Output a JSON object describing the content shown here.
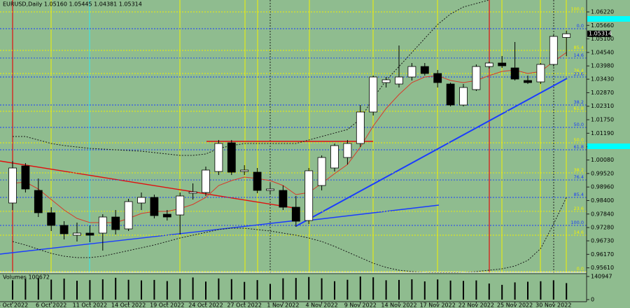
{
  "chart_data": {
    "type": "candlestick",
    "title": "EURUSD,Daily  1.05160 1.05445 1.04381 1.05314",
    "categories": [
      "3 Oct 2022",
      null,
      null,
      "6 Oct 2022",
      null,
      null,
      "11 Oct 2022",
      null,
      null,
      "14 Oct 2022",
      null,
      null,
      "19 Oct 2022",
      null,
      null,
      "24 Oct 2022",
      null,
      null,
      "27 Oct 2022",
      null,
      null,
      "1 Nov 2022",
      null,
      null,
      "4 Nov 2022",
      null,
      null,
      "9 Nov 2022",
      null,
      null,
      "14 Nov 2022",
      null,
      null,
      "17 Nov 2022",
      null,
      null,
      "22 Nov 2022",
      null,
      null,
      "25 Nov 2022",
      null,
      null,
      "30 Nov 2022",
      null
    ],
    "open": [
      0.98298,
      0.99836,
      0.9882,
      0.97892,
      0.97369,
      0.96963,
      0.9705,
      0.9705,
      0.97717,
      0.97224,
      0.98298,
      0.9853,
      0.97833,
      0.97804,
      0.98704,
      0.98733,
      0.99604,
      1.00793,
      0.99604,
      0.99575,
      0.9882,
      0.9882,
      0.98124,
      0.97572,
      0.99023,
      0.99749,
      1.00184,
      1.00764,
      1.0207,
      1.03289,
      1.03231,
      1.03521,
      1.03956,
      1.03666,
      1.03231,
      1.0236,
      1.02999,
      1.03956,
      1.04101,
      1.03898,
      1.03376,
      1.03318,
      1.04043,
      1.0516
    ],
    "high": [
      1.00039,
      0.99952,
      0.99313,
      0.98124,
      0.97543,
      0.97485,
      0.97369,
      0.97833,
      0.98008,
      0.98472,
      0.98733,
      0.98646,
      0.98008,
      0.98733,
      0.9911,
      0.99807,
      1.00909,
      1.00909,
      0.99865,
      0.99749,
      0.9911,
      0.99023,
      0.98588,
      0.99749,
      1.00271,
      1.00764,
      1.00909,
      1.0236,
      1.03579,
      1.03521,
      1.04827,
      1.04101,
      1.04101,
      1.03811,
      1.03289,
      1.03231,
      1.04043,
      1.04159,
      1.04392,
      1.04972,
      1.03579,
      1.04101,
      1.05262,
      1.05445
    ],
    "low": [
      0.98008,
      0.98733,
      0.97717,
      0.97137,
      0.96789,
      0.96702,
      0.96673,
      0.96325,
      0.96992,
      0.97137,
      0.98008,
      0.97659,
      0.97572,
      0.96992,
      0.98443,
      0.98588,
      0.99458,
      0.99458,
      0.99458,
      0.98704,
      0.98646,
      0.98008,
      0.97311,
      0.97427,
      0.9882,
      0.99604,
      0.99894,
      1.00619,
      1.01925,
      1.03086,
      1.03086,
      1.03376,
      1.03579,
      1.03086,
      1.02302,
      1.02302,
      1.02941,
      1.03869,
      1.03898,
      1.03376,
      1.03231,
      1.03231,
      1.03956,
      1.04381
    ],
    "close": [
      0.99749,
      0.98878,
      0.97892,
      0.97369,
      0.97021,
      0.9705,
      0.96963,
      0.97717,
      0.97195,
      0.98356,
      0.9853,
      0.97775,
      0.97717,
      0.98588,
      0.98762,
      0.99662,
      1.00764,
      0.99575,
      0.99662,
      0.9882,
      0.98878,
      0.98124,
      0.97543,
      0.99633,
      1.00184,
      1.00677,
      1.00764,
      1.0207,
      1.03521,
      1.03405,
      1.03521,
      1.03956,
      1.03666,
      1.03289,
      1.0236,
      1.03086,
      1.03956,
      1.04101,
      1.03985,
      1.03434,
      1.03289,
      1.04043,
      1.05204,
      1.05314
    ],
    "bull_color": "#ffffff",
    "bear_color": "#000000",
    "ylim": [
      0.95396,
      1.06713
    ],
    "yticks": [
      {
        "value": 1.0622,
        "label": "1.06220"
      },
      {
        "value": 1.0566,
        "label": "1.05660"
      },
      {
        "value": 1.051,
        "label": "1.05100"
      },
      {
        "value": 1.0454,
        "label": "1.04540"
      },
      {
        "value": 1.0398,
        "label": "1.03980"
      },
      {
        "value": 1.0343,
        "label": "1.03430"
      },
      {
        "value": 1.0287,
        "label": "1.02870"
      },
      {
        "value": 1.0231,
        "label": "1.02310"
      },
      {
        "value": 1.0175,
        "label": "1.01750"
      },
      {
        "value": 1.0119,
        "label": "1.01190"
      },
      {
        "value": 1.0063,
        "label": "1.00630"
      },
      {
        "value": 1.0008,
        "label": "1.00080"
      },
      {
        "value": 0.9952,
        "label": "0.99520"
      },
      {
        "value": 0.9896,
        "label": "0.98960"
      },
      {
        "value": 0.984,
        "label": "0.98400"
      },
      {
        "value": 0.9784,
        "label": "0.97840"
      },
      {
        "value": 0.9728,
        "label": "0.97280"
      },
      {
        "value": 0.9673,
        "label": "0.96730"
      },
      {
        "value": 0.9617,
        "label": "0.96170"
      },
      {
        "value": 0.9561,
        "label": "0.95610"
      }
    ],
    "last_price": 1.05314,
    "overlays": [
      {
        "color": "#1a1a1a",
        "dash": true,
        "values": [
          1.01054,
          1.01054,
          1.00909,
          1.00764,
          1.00677,
          1.00619,
          1.00561,
          1.00532,
          1.00503,
          1.00474,
          1.00445,
          1.00387,
          1.00329,
          1.00271,
          1.00271,
          1.00329,
          1.00561,
          1.00677,
          1.00764,
          1.00764,
          1.00764,
          1.00764,
          1.00764,
          1.00909,
          1.01054,
          1.012,
          1.01345,
          1.0178,
          1.0265,
          1.03376,
          1.03956,
          1.04537,
          1.05117,
          1.05697,
          1.06133,
          1.06423,
          1.06568,
          1.06713,
          null,
          null,
          null,
          null,
          null,
          null
        ]
      },
      {
        "color": "#1a1a1a",
        "dash": true,
        "values": [
          0.96702,
          0.96557,
          0.96383,
          0.96208,
          0.96092,
          0.96034,
          0.96034,
          0.96092,
          0.96208,
          0.96325,
          0.96441,
          0.96557,
          0.96702,
          0.96847,
          0.96963,
          0.97079,
          0.97195,
          0.97253,
          0.97253,
          0.97195,
          0.97137,
          0.9705,
          0.96963,
          0.96847,
          0.96702,
          0.96499,
          0.96267,
          0.96034,
          0.95802,
          0.95628,
          0.95512,
          0.95454,
          0.95425,
          0.95396,
          0.95396,
          0.95425,
          0.95454,
          0.95512,
          0.9557,
          0.95686,
          0.95918,
          0.96412,
          0.97427,
          0.9853
        ]
      },
      {
        "color": "#d83a2a",
        "dash": false,
        "values": [
          0.9911,
          0.99168,
          0.98878,
          0.98443,
          0.98008,
          0.97659,
          0.97485,
          0.97485,
          0.97485,
          0.97659,
          0.97863,
          0.9795,
          0.9795,
          0.98066,
          0.9824,
          0.9853,
          0.99023,
          0.99226,
          0.99371,
          0.99313,
          0.99226,
          0.99023,
          0.98646,
          0.98733,
          0.9911,
          0.99517,
          0.99894,
          1.00619,
          1.0149,
          1.02215,
          1.02796,
          1.03289,
          1.03521,
          1.03579,
          1.03376,
          1.03289,
          1.03376,
          1.03579,
          1.03753,
          1.03811,
          1.03666,
          1.03753,
          1.04159,
          1.04537
        ]
      }
    ],
    "fib_levels": [
      {
        "value": 1.05523,
        "label": "0.0",
        "color": "#1a3cff"
      },
      {
        "value": 1.04305,
        "label": "14.6",
        "color": "#1a3cff"
      },
      {
        "value": 1.03521,
        "label": "23.6",
        "color": "#1a3cff"
      },
      {
        "value": 1.0236,
        "label": "38.2",
        "color": "#1a3cff"
      },
      {
        "value": 1.01432,
        "label": "50.0",
        "color": "#1a3cff"
      },
      {
        "value": 1.00503,
        "label": "61.8",
        "color": "#1a3cff"
      },
      {
        "value": 0.99255,
        "label": "76.4",
        "color": "#1a3cff"
      },
      {
        "value": 0.9853,
        "label": "85.4",
        "color": "#1a3cff"
      },
      {
        "value": 0.97369,
        "label": "100.0",
        "color": "#1a3cff"
      },
      {
        "value": 1.0622,
        "label": "100.0",
        "color": "#f2f200"
      },
      {
        "value": 1.04624,
        "label": "85.4",
        "color": "#f2f200"
      },
      {
        "value": 1.03666,
        "label": "76.4",
        "color": "#f2f200"
      },
      {
        "value": 1.02099,
        "label": "61.8",
        "color": "#f2f200"
      },
      {
        "value": 1.00793,
        "label": "50.0",
        "color": "#f2f200"
      },
      {
        "value": 0.99546,
        "label": "38.2",
        "color": "#f2f200"
      },
      {
        "value": 0.9795,
        "label": "23.6",
        "color": "#f2f200"
      },
      {
        "value": 0.96963,
        "label": "14.6",
        "color": "#f2f200"
      },
      {
        "value": 0.95454,
        "label": "0.0",
        "color": "#f2f200"
      }
    ],
    "volume_label": "Volumes 100672",
    "volumes": [
      118000,
      126000,
      131000,
      122000,
      128000,
      115000,
      119000,
      124000,
      133000,
      121000,
      117000,
      120000,
      113000,
      127000,
      135000,
      110000,
      129000,
      125000,
      108000,
      119000,
      96000,
      130000,
      132000,
      138000,
      130000,
      112000,
      121000,
      140947,
      136000,
      118000,
      120000,
      124000,
      111000,
      123000,
      116000,
      114000,
      117000,
      98000,
      90000,
      105000,
      109000,
      112000,
      118000,
      100672
    ],
    "volume_ylim": [
      0,
      140947
    ],
    "volume_yticks": [
      140947,
      0
    ]
  }
}
